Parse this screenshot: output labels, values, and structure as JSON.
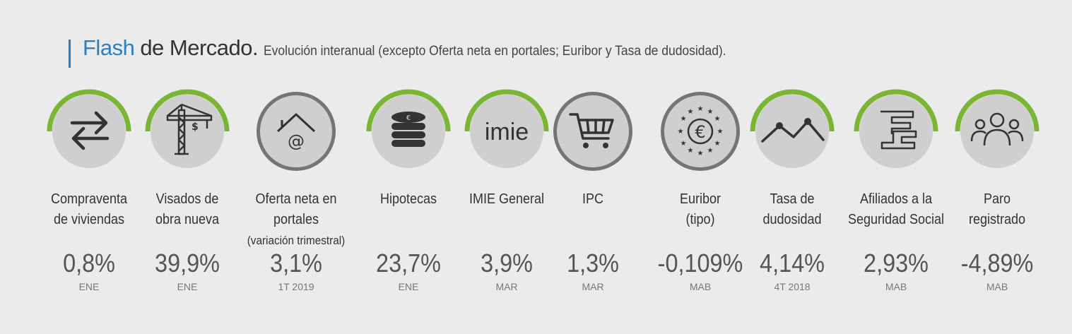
{
  "header": {
    "title_accent": "Flash",
    "title_rest": "de Mercado.",
    "subtitle": "Evolución interanual (excepto Oferta neta en portales; Euribor y Tasa de dudosidad)."
  },
  "colors": {
    "accent_blue": "#2a7fc1",
    "ring_green": "#7ab534",
    "circle_gray": "#cfcfcf",
    "ring_dark_gray": "#757575"
  },
  "indicators": [
    {
      "icon": "arrows-exchange-icon",
      "ring": "green",
      "label1": "Compraventa",
      "label2": "de viviendas",
      "value": "0,8%",
      "period": "ENE"
    },
    {
      "icon": "crane-icon",
      "ring": "green",
      "label1": "Visados de",
      "label2": "obra nueva",
      "value": "39,9%",
      "period": "ENE"
    },
    {
      "icon": "house-at-icon",
      "ring": "gray",
      "label1": "Oferta neta en portales",
      "label2": "(variación trimestral)",
      "value": "3,1%",
      "period": "1T 2019"
    },
    {
      "icon": "coin-stack-icon",
      "ring": "green",
      "label1": "Hipotecas",
      "label2": "",
      "value": "23,7%",
      "period": "ENE"
    },
    {
      "icon": "imie-logo-icon",
      "logo_text": "imie",
      "ring": "green",
      "label1": "IMIE General",
      "label2": "",
      "value": "3,9%",
      "period": "MAR"
    },
    {
      "icon": "shopping-cart-icon",
      "ring": "gray",
      "label1": "IPC",
      "label2": "",
      "value": "1,3%",
      "period": "MAR"
    },
    {
      "icon": "euro-stars-icon",
      "ring": "gray",
      "label1": "Euribor",
      "label2": "(tipo)",
      "value": "-0,109%",
      "period": "MAB"
    },
    {
      "icon": "line-peaks-icon",
      "ring": "green",
      "label1": "Tasa de",
      "label2": "dudosidad",
      "value": "4,14%",
      "period": "4T 2018"
    },
    {
      "icon": "social-security-logo-icon",
      "ring": "green",
      "label1": "Afiliados a la",
      "label2": "Seguridad Social",
      "value": "2,93%",
      "period": "MAB"
    },
    {
      "icon": "people-group-icon",
      "ring": "green",
      "label1": "Paro",
      "label2": "registrado",
      "value": "-4,89%",
      "period": "MAB"
    }
  ]
}
